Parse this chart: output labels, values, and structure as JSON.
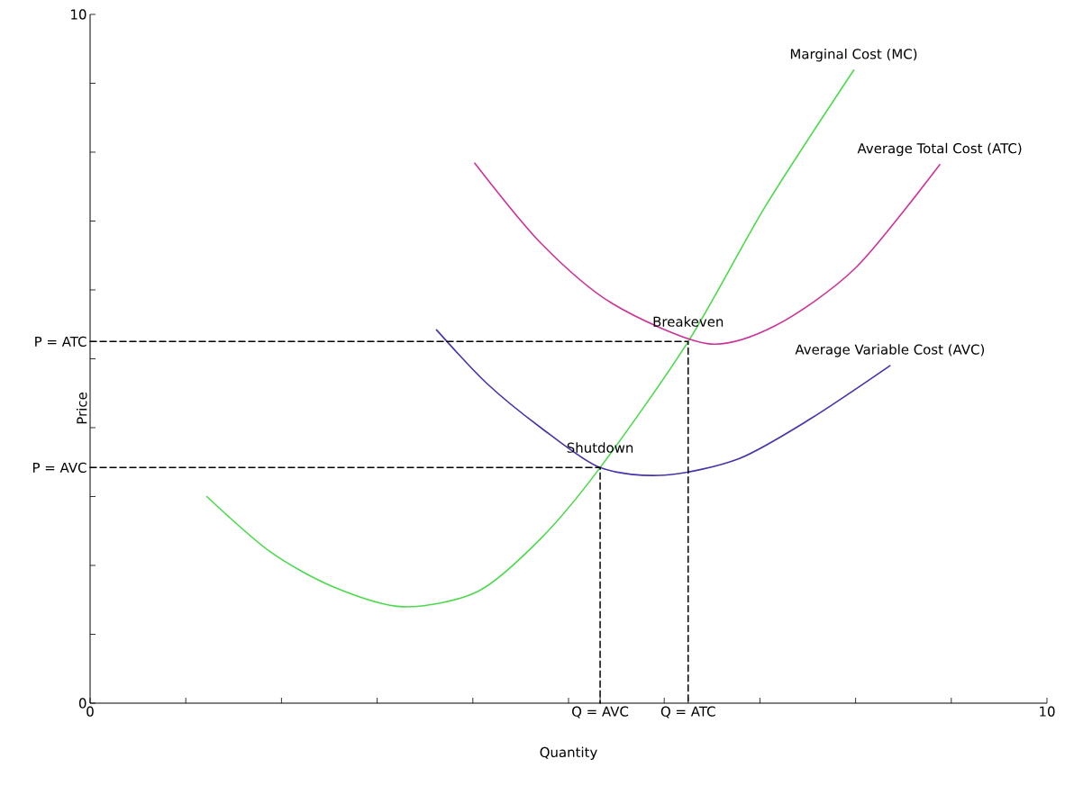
{
  "chart_data": {
    "type": "line",
    "xlabel": "Quantity",
    "ylabel": "Price",
    "xlim": [
      0,
      10
    ],
    "ylim": [
      0,
      10
    ],
    "xticks": [
      0,
      {
        "value": 1,
        "label": null
      },
      {
        "value": 2,
        "label": null
      },
      {
        "value": 3,
        "label": null
      },
      {
        "value": 4,
        "label": null
      },
      {
        "value": 5,
        "label": null
      },
      {
        "value": 5.33,
        "label": "Q = AVC"
      },
      {
        "value": 6,
        "label": null
      },
      {
        "value": 6.25,
        "label": "Q = ATC"
      },
      {
        "value": 7,
        "label": null
      },
      {
        "value": 8,
        "label": null
      },
      {
        "value": 9,
        "label": null
      },
      10
    ],
    "yticks": [
      0,
      {
        "value": 1,
        "label": null
      },
      {
        "value": 2,
        "label": null
      },
      {
        "value": 3,
        "label": null
      },
      {
        "value": 3.42,
        "label": "P = AVC"
      },
      {
        "value": 4,
        "label": null
      },
      {
        "value": 5,
        "label": null
      },
      {
        "value": 5.25,
        "label": "P = ATC"
      },
      {
        "value": 6,
        "label": null
      },
      {
        "value": 7,
        "label": null
      },
      {
        "value": 8,
        "label": null
      },
      {
        "value": 9,
        "label": null
      },
      10
    ],
    "marker": "none",
    "grid": false,
    "series": [
      {
        "name": "Marginal Cost (MC)",
        "color": "#4cd94c",
        "line_style": "solid",
        "x": [
          1.22,
          1.88,
          2.54,
          3.27,
          4.05,
          4.71,
          5.33,
          6.25,
          7.06,
          7.98
        ],
        "values": [
          3.0,
          2.2,
          1.69,
          1.4,
          1.62,
          2.39,
          3.42,
          5.25,
          7.22,
          9.19
        ]
      },
      {
        "name": "Average Total Cost (ATC)",
        "color": "#cc3399",
        "line_style": "solid",
        "x": [
          4.02,
          4.71,
          5.46,
          6.45,
          7.16,
          8.0,
          8.88
        ],
        "values": [
          7.84,
          6.68,
          5.8,
          5.22,
          5.48,
          6.32,
          7.82
        ]
      },
      {
        "name": "Average Variable Cost (AVC)",
        "color": "#4433aa",
        "line_style": "solid",
        "x": [
          3.62,
          4.14,
          4.71,
          5.33,
          6.0,
          6.78,
          7.53,
          8.36
        ],
        "values": [
          5.42,
          4.65,
          4.0,
          3.42,
          3.31,
          3.55,
          4.13,
          4.9
        ]
      },
      {
        "color": "#000000",
        "line_style": "dashed",
        "x": [
          0,
          6.25,
          6.25
        ],
        "values": [
          5.25,
          5.25,
          0
        ]
      },
      {
        "color": "#000000",
        "line_style": "dashed",
        "x": [
          0,
          5.33,
          5.33
        ],
        "values": [
          3.42,
          3.42,
          0
        ]
      }
    ],
    "annotations": [
      {
        "text": "Breakeven",
        "x": 6.25,
        "y": 5.25
      },
      {
        "text": "Shutdown",
        "x": 5.33,
        "y": 3.42
      }
    ]
  }
}
